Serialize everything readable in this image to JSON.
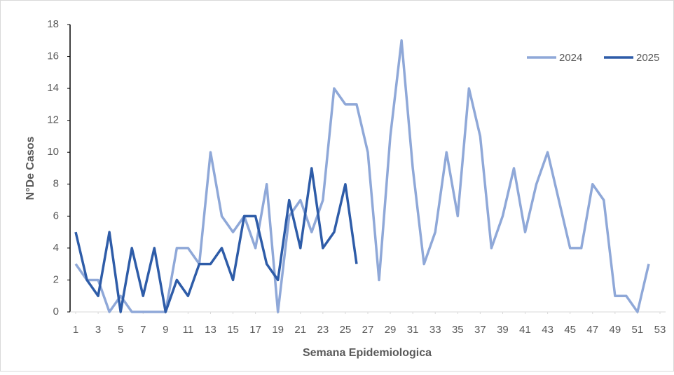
{
  "chart_data": {
    "type": "line",
    "xlabel": "Semana Epidemiologica",
    "ylabel": "N°De Casos",
    "series": [
      {
        "name": "2024",
        "color": "#8fa8d8",
        "x": [
          1,
          2,
          3,
          4,
          5,
          6,
          7,
          8,
          9,
          10,
          11,
          12,
          13,
          14,
          15,
          16,
          17,
          18,
          19,
          20,
          21,
          22,
          23,
          24,
          25,
          26,
          27,
          28,
          29,
          30,
          31,
          32,
          33,
          34,
          35,
          36,
          37,
          38,
          39,
          40,
          41,
          42,
          43,
          44,
          45,
          46,
          47,
          48,
          49,
          50,
          51,
          52
        ],
        "values": [
          3,
          2,
          2,
          0,
          1,
          0,
          0,
          0,
          0,
          4,
          4,
          3,
          10,
          6,
          5,
          6,
          4,
          8,
          0,
          6,
          7,
          5,
          7,
          14,
          13,
          13,
          10,
          2,
          11,
          17,
          9,
          3,
          5,
          10,
          6,
          14,
          11,
          4,
          6,
          9,
          5,
          8,
          10,
          7,
          4,
          4,
          8,
          7,
          1,
          1,
          0,
          3
        ]
      },
      {
        "name": "2025",
        "color": "#2e5ca8",
        "x": [
          1,
          2,
          3,
          4,
          5,
          6,
          7,
          8,
          9,
          10,
          11,
          12,
          13,
          14,
          15,
          16,
          17,
          18,
          19,
          20,
          21,
          22,
          23,
          24,
          25,
          26
        ],
        "values": [
          5,
          2,
          1,
          5,
          0,
          4,
          1,
          4,
          0,
          2,
          1,
          3,
          3,
          4,
          2,
          6,
          6,
          3,
          2,
          7,
          4,
          9,
          4,
          5,
          8,
          3
        ]
      }
    ],
    "xlim": [
      0.5,
      53.5
    ],
    "xticks": [
      1,
      3,
      5,
      7,
      9,
      11,
      13,
      15,
      17,
      19,
      21,
      23,
      25,
      27,
      29,
      31,
      33,
      35,
      37,
      39,
      41,
      43,
      45,
      47,
      49,
      51,
      53
    ],
    "ylim": [
      0,
      18
    ],
    "yticks": [
      0,
      2,
      4,
      6,
      8,
      10,
      12,
      14,
      16,
      18
    ],
    "grid": false,
    "legend": "upper right"
  }
}
